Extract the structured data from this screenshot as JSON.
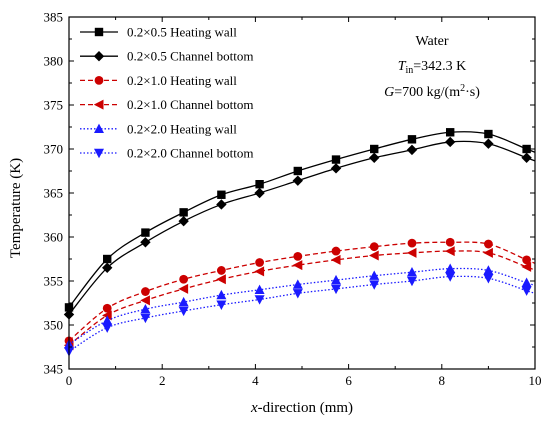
{
  "chart_data": {
    "type": "line",
    "xlabel_prefix": "x",
    "xlabel_rest": "-direction (mm)",
    "ylabel": "Temperature (K)",
    "xlim": [
      0,
      10
    ],
    "ylim": [
      345,
      385
    ],
    "xticks": [
      0,
      2,
      4,
      6,
      8,
      10
    ],
    "yticks": [
      345,
      350,
      355,
      360,
      365,
      370,
      375,
      380,
      385
    ],
    "grid": false,
    "legend_position": "top-left",
    "annotations": {
      "fluid": "Water",
      "tin_symbol": "T",
      "tin_sub": "in",
      "tin_value": "=342.3 K",
      "g_symbol": "G",
      "g_value": "=700 kg/(m",
      "g_sup": "2",
      "g_tail": "·s)"
    },
    "x": [
      0,
      0.82,
      1.64,
      2.46,
      3.27,
      4.09,
      4.91,
      5.73,
      6.55,
      7.36,
      8.18,
      9.0,
      9.82
    ],
    "series": [
      {
        "name": "0.2×0.5 Heating wall",
        "color": "#000000",
        "marker": "square",
        "dash": "",
        "values": [
          352.0,
          357.5,
          360.5,
          362.8,
          364.8,
          366.0,
          367.5,
          368.8,
          370.0,
          371.1,
          371.9,
          371.7,
          370.0
        ]
      },
      {
        "name": "0.2×0.5 Channel bottom",
        "color": "#000000",
        "marker": "diamond",
        "dash": "",
        "values": [
          351.2,
          356.5,
          359.4,
          361.8,
          363.7,
          365.0,
          366.4,
          367.8,
          369.0,
          369.9,
          370.8,
          370.6,
          369.0
        ]
      },
      {
        "name": "0.2×1.0 Heating wall",
        "color": "#cc0000",
        "marker": "circle",
        "dash": "5,3",
        "values": [
          348.2,
          351.9,
          353.8,
          355.2,
          356.2,
          357.1,
          357.8,
          358.4,
          358.9,
          359.3,
          359.4,
          359.2,
          357.4
        ]
      },
      {
        "name": "0.2×1.0 Channel bottom",
        "color": "#cc0000",
        "marker": "triangle-left",
        "dash": "5,3",
        "values": [
          347.7,
          351.1,
          352.8,
          354.1,
          355.2,
          356.1,
          356.8,
          357.4,
          357.9,
          358.2,
          358.4,
          358.2,
          356.6
        ]
      },
      {
        "name": "0.2×2.0 Heating wall",
        "color": "#1a1aff",
        "marker": "triangle-up",
        "dash": "1.5,2",
        "values": [
          347.8,
          350.5,
          351.8,
          352.6,
          353.4,
          354.0,
          354.6,
          355.1,
          355.6,
          356.0,
          356.4,
          356.2,
          354.8
        ]
      },
      {
        "name": "0.2×2.0 Channel bottom",
        "color": "#1a1aff",
        "marker": "triangle-down",
        "dash": "1.5,2",
        "values": [
          347.0,
          349.7,
          350.8,
          351.6,
          352.3,
          352.9,
          353.6,
          354.1,
          354.6,
          355.0,
          355.5,
          355.3,
          353.9
        ]
      }
    ]
  }
}
